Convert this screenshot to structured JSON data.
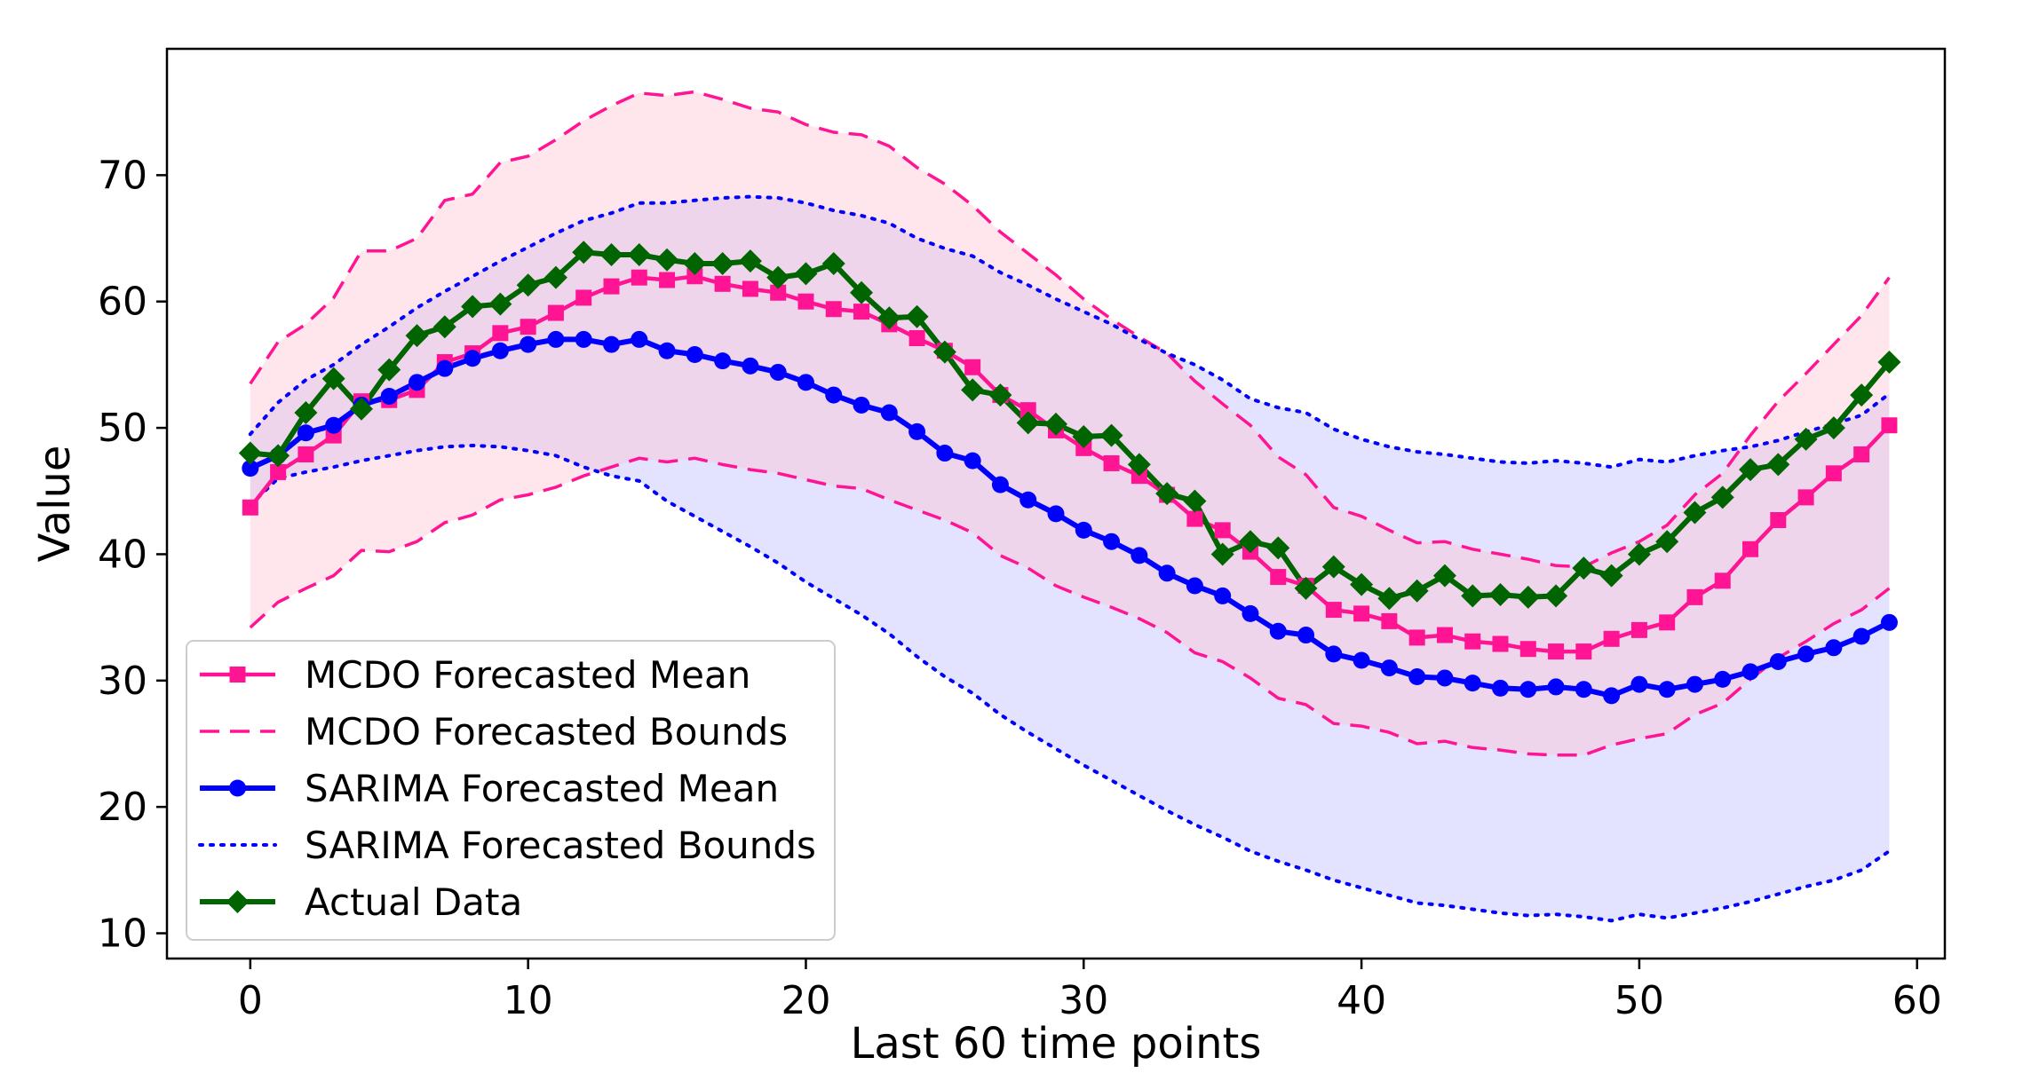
{
  "chart_data": {
    "type": "line",
    "title": "",
    "xlabel": "Last 60 time points",
    "ylabel": "Value",
    "xlim": [
      -3,
      61
    ],
    "ylim": [
      8,
      80
    ],
    "xticks": [
      0,
      10,
      20,
      30,
      40,
      50,
      60
    ],
    "yticks": [
      10,
      20,
      30,
      40,
      50,
      60,
      70
    ],
    "x": [
      0,
      1,
      2,
      3,
      4,
      5,
      6,
      7,
      8,
      9,
      10,
      11,
      12,
      13,
      14,
      15,
      16,
      17,
      18,
      19,
      20,
      21,
      22,
      23,
      24,
      25,
      26,
      27,
      28,
      29,
      30,
      31,
      32,
      33,
      34,
      35,
      36,
      37,
      38,
      39,
      40,
      41,
      42,
      43,
      44,
      45,
      46,
      47,
      48,
      49,
      50,
      51,
      52,
      53,
      54,
      55,
      56,
      57,
      58,
      59
    ],
    "legend_position": "lower-left",
    "colors": {
      "mcdo": "#ff1493",
      "mcdo_fill": "#ffc0d0",
      "sarima": "#0000ff",
      "sarima_fill": "#c8c8ff",
      "actual": "#006400"
    },
    "series": [
      {
        "name": "MCDO Forecasted Mean",
        "style": "line-square",
        "values": [
          43.7,
          46.5,
          47.9,
          49.4,
          52.1,
          52.2,
          53.0,
          55.2,
          55.9,
          57.5,
          58.0,
          59.1,
          60.3,
          61.2,
          61.9,
          61.7,
          62.0,
          61.4,
          61.0,
          60.7,
          60.0,
          59.4,
          59.2,
          58.2,
          57.1,
          56.1,
          54.8,
          52.6,
          51.4,
          49.8,
          48.4,
          47.2,
          46.2,
          44.7,
          42.8,
          41.9,
          40.2,
          38.2,
          37.5,
          35.6,
          35.3,
          34.7,
          33.4,
          33.6,
          33.1,
          32.9,
          32.5,
          32.3,
          32.3,
          33.3,
          34.0,
          34.6,
          36.6,
          37.9,
          40.4,
          42.7,
          44.5,
          46.4,
          47.9,
          50.2
        ]
      },
      {
        "name": "MCDO Forecasted Bounds",
        "style": "dashed",
        "upper": [
          53.5,
          56.8,
          58.2,
          60.3,
          64.0,
          64.0,
          65.0,
          68.0,
          68.5,
          71.0,
          71.5,
          72.8,
          74.3,
          75.5,
          76.5,
          76.3,
          76.6,
          76.0,
          75.3,
          75.0,
          74.0,
          73.4,
          73.2,
          72.3,
          70.6,
          69.3,
          67.6,
          65.5,
          63.8,
          62.1,
          60.2,
          58.6,
          57.2,
          55.9,
          53.7,
          51.9,
          50.2,
          47.7,
          46.3,
          43.7,
          43.0,
          41.9,
          40.9,
          41.0,
          40.4,
          40.0,
          39.6,
          39.1,
          39.0,
          40.1,
          41.0,
          42.3,
          44.7,
          46.4,
          49.4,
          52.1,
          54.3,
          56.6,
          58.9,
          61.9
        ],
        "lower": [
          34.2,
          36.2,
          37.3,
          38.3,
          40.3,
          40.2,
          41.0,
          42.5,
          43.1,
          44.3,
          44.7,
          45.3,
          46.2,
          46.9,
          47.6,
          47.3,
          47.6,
          47.1,
          46.7,
          46.4,
          45.9,
          45.4,
          45.2,
          44.3,
          43.5,
          42.7,
          41.7,
          39.9,
          38.9,
          37.5,
          36.6,
          35.8,
          34.9,
          33.8,
          32.2,
          31.5,
          30.2,
          28.6,
          28.1,
          26.6,
          26.4,
          25.9,
          25.0,
          25.2,
          24.7,
          24.5,
          24.2,
          24.1,
          24.1,
          24.9,
          25.4,
          25.8,
          27.3,
          28.2,
          30.1,
          31.8,
          33.1,
          34.5,
          35.6,
          37.3
        ]
      },
      {
        "name": "SARIMA Forecasted Mean",
        "style": "line-circle",
        "values": [
          46.8,
          47.8,
          49.6,
          50.2,
          51.8,
          52.5,
          53.6,
          54.7,
          55.5,
          56.1,
          56.6,
          57.0,
          57.0,
          56.6,
          57.0,
          56.1,
          55.8,
          55.3,
          54.9,
          54.4,
          53.6,
          52.6,
          51.8,
          51.2,
          49.7,
          48.0,
          47.4,
          45.5,
          44.3,
          43.2,
          41.9,
          41.0,
          39.9,
          38.5,
          37.5,
          36.7,
          35.3,
          33.9,
          33.6,
          32.1,
          31.6,
          31.0,
          30.3,
          30.2,
          29.8,
          29.4,
          29.3,
          29.5,
          29.3,
          28.8,
          29.7,
          29.3,
          29.7,
          30.1,
          30.7,
          31.5,
          32.1,
          32.6,
          33.5,
          34.6
        ]
      },
      {
        "name": "SARIMA Forecasted Bounds",
        "style": "dotted",
        "upper": [
          49.5,
          52.0,
          53.8,
          55.0,
          56.6,
          58.0,
          59.5,
          60.8,
          62.0,
          63.2,
          64.3,
          65.4,
          66.4,
          67.0,
          67.8,
          67.8,
          68.0,
          68.2,
          68.3,
          68.2,
          67.8,
          67.2,
          66.8,
          66.2,
          65.0,
          64.2,
          63.6,
          62.3,
          61.3,
          60.2,
          59.2,
          58.2,
          57.0,
          55.9,
          55.0,
          53.8,
          52.3,
          51.6,
          51.2,
          49.9,
          49.1,
          48.5,
          48.1,
          47.9,
          47.6,
          47.3,
          47.2,
          47.4,
          47.2,
          46.9,
          47.5,
          47.3,
          47.8,
          48.2,
          48.5,
          49.0,
          49.7,
          50.3,
          51.0,
          52.7
        ],
        "lower": [
          43.9,
          46.0,
          46.5,
          46.9,
          47.4,
          47.8,
          48.2,
          48.5,
          48.6,
          48.5,
          48.2,
          47.8,
          46.9,
          46.2,
          45.8,
          44.2,
          43.0,
          41.8,
          40.6,
          39.3,
          37.8,
          36.5,
          35.2,
          33.7,
          31.9,
          30.3,
          29.0,
          27.3,
          25.9,
          24.6,
          23.3,
          22.1,
          20.9,
          19.7,
          18.6,
          17.6,
          16.5,
          15.7,
          15.0,
          14.2,
          13.6,
          13.0,
          12.4,
          12.2,
          11.9,
          11.6,
          11.4,
          11.5,
          11.3,
          11.0,
          11.5,
          11.2,
          11.6,
          12.0,
          12.5,
          13.1,
          13.7,
          14.2,
          15.0,
          16.5
        ]
      },
      {
        "name": "Actual Data",
        "style": "line-diamond",
        "values": [
          48.0,
          47.8,
          51.2,
          53.9,
          51.5,
          54.6,
          57.3,
          58.0,
          59.6,
          59.8,
          61.3,
          61.9,
          63.9,
          63.7,
          63.7,
          63.3,
          63.0,
          63.0,
          63.2,
          61.9,
          62.2,
          63.0,
          60.7,
          58.7,
          58.8,
          56.0,
          53.0,
          52.6,
          50.4,
          50.3,
          49.3,
          49.4,
          47.1,
          44.8,
          44.2,
          40.0,
          41.0,
          40.5,
          37.3,
          39.0,
          37.6,
          36.5,
          37.1,
          38.3,
          36.7,
          36.8,
          36.6,
          36.7,
          38.9,
          38.3,
          40.0,
          41.0,
          43.3,
          44.5,
          46.7,
          47.1,
          49.1,
          50.0,
          52.6,
          55.2
        ]
      }
    ]
  }
}
